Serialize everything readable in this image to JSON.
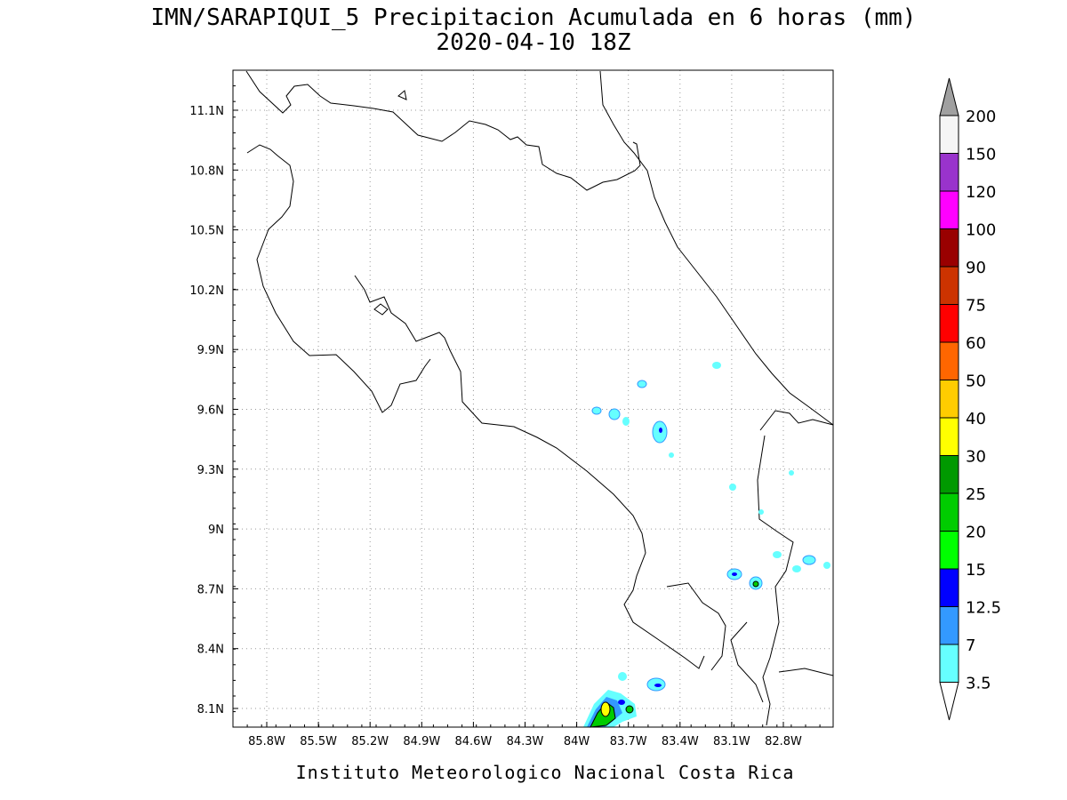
{
  "map": {
    "title": "IMN/SARAPIQUI_5 Precipitacion Acumulada en 6 horas (mm)",
    "subtitle": "2020-04-10 18Z",
    "lon_ticks": [
      "85.8W",
      "85.5W",
      "85.2W",
      "84.9W",
      "84.6W",
      "84.3W",
      "84W",
      "83.7W",
      "83.4W",
      "83.1W",
      "82.8W"
    ],
    "lat_ticks": [
      "11.1N",
      "10.8N",
      "10.5N",
      "10.2N",
      "9.9N",
      "9.6N",
      "9.3N",
      "9N",
      "8.7N",
      "8.4N",
      "8.1N"
    ],
    "colorbar": {
      "labels": [
        "200",
        "150",
        "120",
        "100",
        "90",
        "75",
        "60",
        "50",
        "40",
        "30",
        "25",
        "20",
        "15",
        "12.5",
        "7",
        "3.5"
      ],
      "colors": [
        "#a0a0a0",
        "#f5f5f5",
        "#9933cc",
        "#ff00ff",
        "#990000",
        "#cc3300",
        "#ff0000",
        "#ff6600",
        "#ffcc00",
        "#ffff00",
        "#009900",
        "#00cc00",
        "#00ff00",
        "#0000ff",
        "#3399ff",
        "#66ffff",
        "#ffffff"
      ]
    },
    "footer": "Instituto Meteorologico Nacional Costa Rica"
  }
}
